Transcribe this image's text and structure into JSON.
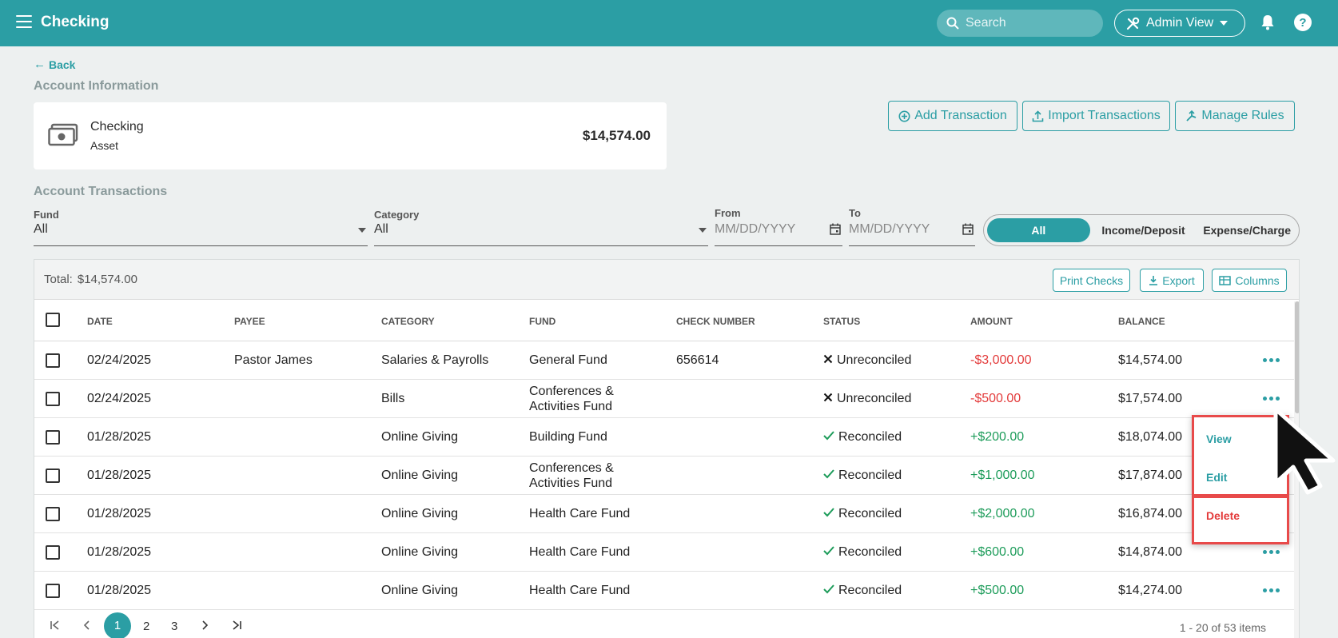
{
  "topbar": {
    "title": "Checking",
    "search_placeholder": "Search",
    "admin_label": "Admin View",
    "help_glyph": "?"
  },
  "back_label": "Back",
  "account_info": {
    "section_title": "Account Information",
    "name": "Checking",
    "type": "Asset",
    "balance": "$14,574.00",
    "icon": "money-icon"
  },
  "actions": {
    "add_transaction": "Add Transaction",
    "import_transactions": "Import Transactions",
    "manage_rules": "Manage Rules"
  },
  "transactions": {
    "section_title": "Account Transactions",
    "filters": {
      "fund_label": "Fund",
      "fund_value": "All",
      "category_label": "Category",
      "category_value": "All",
      "from_label": "From",
      "from_placeholder": "MM/DD/YYYY",
      "to_label": "To",
      "to_placeholder": "MM/DD/YYYY"
    },
    "segments": [
      "All",
      "Income/Deposit",
      "Expense/Charge"
    ],
    "active_segment": "All",
    "total_label": "Total:",
    "total_value": "$14,574.00",
    "toolbar": {
      "print_checks": "Print Checks",
      "export": "Export",
      "columns": "Columns"
    },
    "columns": [
      "DATE",
      "PAYEE",
      "CATEGORY",
      "FUND",
      "CHECK NUMBER",
      "STATUS",
      "AMOUNT",
      "BALANCE"
    ],
    "rows": [
      {
        "date": "02/24/2025",
        "payee": "Pastor James",
        "category": "Salaries & Payrolls",
        "fund": "General Fund",
        "check": "656614",
        "status": "Unreconciled",
        "amount": "-$3,000.00",
        "balance": "$14,574.00"
      },
      {
        "date": "02/24/2025",
        "payee": "",
        "category": "Bills",
        "fund": "Conferences & Activities Fund",
        "check": "",
        "status": "Unreconciled",
        "amount": "-$500.00",
        "balance": "$17,574.00"
      },
      {
        "date": "01/28/2025",
        "payee": "",
        "category": "Online Giving",
        "fund": "Building Fund",
        "check": "",
        "status": "Reconciled",
        "amount": "+$200.00",
        "balance": "$18,074.00"
      },
      {
        "date": "01/28/2025",
        "payee": "",
        "category": "Online Giving",
        "fund": "Conferences & Activities Fund",
        "check": "",
        "status": "Reconciled",
        "amount": "+$1,000.00",
        "balance": "$17,874.00"
      },
      {
        "date": "01/28/2025",
        "payee": "",
        "category": "Online Giving",
        "fund": "Health Care Fund",
        "check": "",
        "status": "Reconciled",
        "amount": "+$2,000.00",
        "balance": "$16,874.00"
      },
      {
        "date": "01/28/2025",
        "payee": "",
        "category": "Online Giving",
        "fund": "Health Care Fund",
        "check": "",
        "status": "Reconciled",
        "amount": "+$600.00",
        "balance": "$14,874.00"
      },
      {
        "date": "01/28/2025",
        "payee": "",
        "category": "Online Giving",
        "fund": "Health Care Fund",
        "check": "",
        "status": "Reconciled",
        "amount": "+$500.00",
        "balance": "$14,274.00"
      }
    ],
    "pager": {
      "pages": [
        "1",
        "2",
        "3"
      ],
      "current": "1",
      "info": "1 - 20 of 53 items"
    }
  },
  "context_menu": {
    "view": "View",
    "edit": "Edit",
    "delete": "Delete"
  },
  "colors": {
    "accent": "#2b9ea4",
    "negative": "#e33b3b",
    "positive": "#1d9c5a",
    "highlight": "#e84a4a"
  }
}
